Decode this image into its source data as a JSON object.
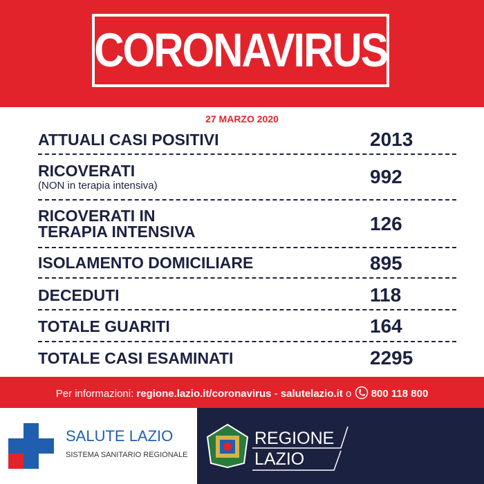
{
  "header": {
    "title": "CORONAVIRUS"
  },
  "date": "27 MARZO 2020",
  "rows": [
    {
      "label": "ATTUALI CASI POSITIVI",
      "value": 2013
    },
    {
      "label": "RICOVERATI",
      "note": "(NON in terapia intensiva)",
      "value": 992
    },
    {
      "label": "RICOVERATI IN",
      "label2": "TERAPIA INTENSIVA",
      "value": 126
    },
    {
      "label": "ISOLAMENTO DOMICILIARE",
      "value": 895
    },
    {
      "label": "DECEDUTI",
      "value": 118
    },
    {
      "label": "TOTALE GUARITI",
      "value": 164
    },
    {
      "label": "TOTALE CASI ESAMINATI",
      "value": 2295
    }
  ],
  "footer": {
    "label": "Per informazioni:",
    "site": "regione.lazio.it/coronavirus",
    "separator": "-",
    "site2": "salutelazio.it",
    "conjunction": "o",
    "phone": "800 118 800"
  },
  "logos": {
    "salute": "SALUTE LAZIO",
    "salute_sub": "SISTEMA SANITARIO REGIONALE",
    "regione": "REGIONE",
    "regione2": "LAZIO"
  }
}
